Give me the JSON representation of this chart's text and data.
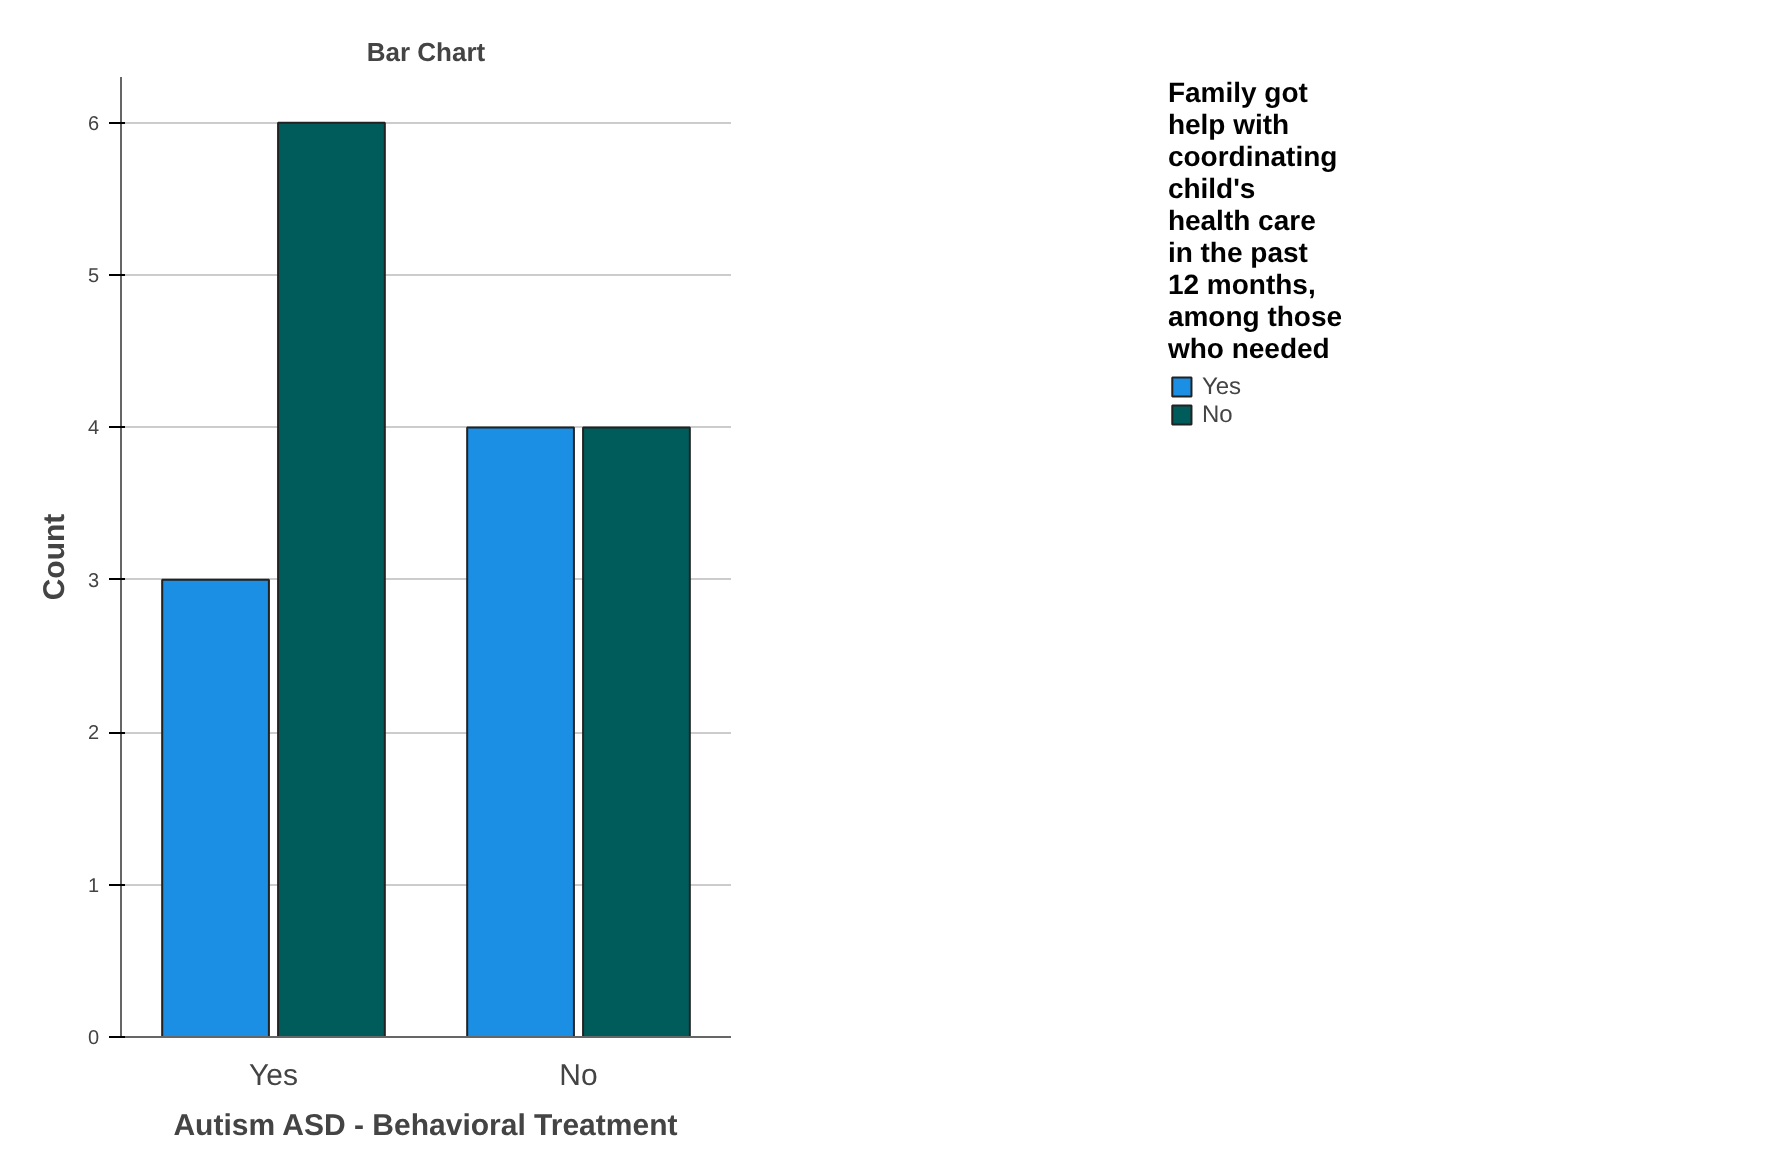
{
  "chart_data": {
    "type": "bar",
    "title": "Bar Chart",
    "xlabel": "Autism ASD - Behavioral Treatment",
    "ylabel": "Count",
    "legend_title": "Family got help with coordinating child's health care in the past 12 months, among those who needed",
    "categories": [
      "Yes",
      "No"
    ],
    "series": [
      {
        "name": "Yes",
        "color": "#1a8fe3",
        "values": [
          3,
          4
        ]
      },
      {
        "name": "No",
        "color": "#005b5b",
        "values": [
          6,
          4
        ]
      }
    ],
    "ylim": [
      0,
      6.3
    ],
    "yticks": [
      0,
      1,
      2,
      3,
      4,
      5,
      6
    ],
    "grid": "y",
    "legend": "right"
  }
}
